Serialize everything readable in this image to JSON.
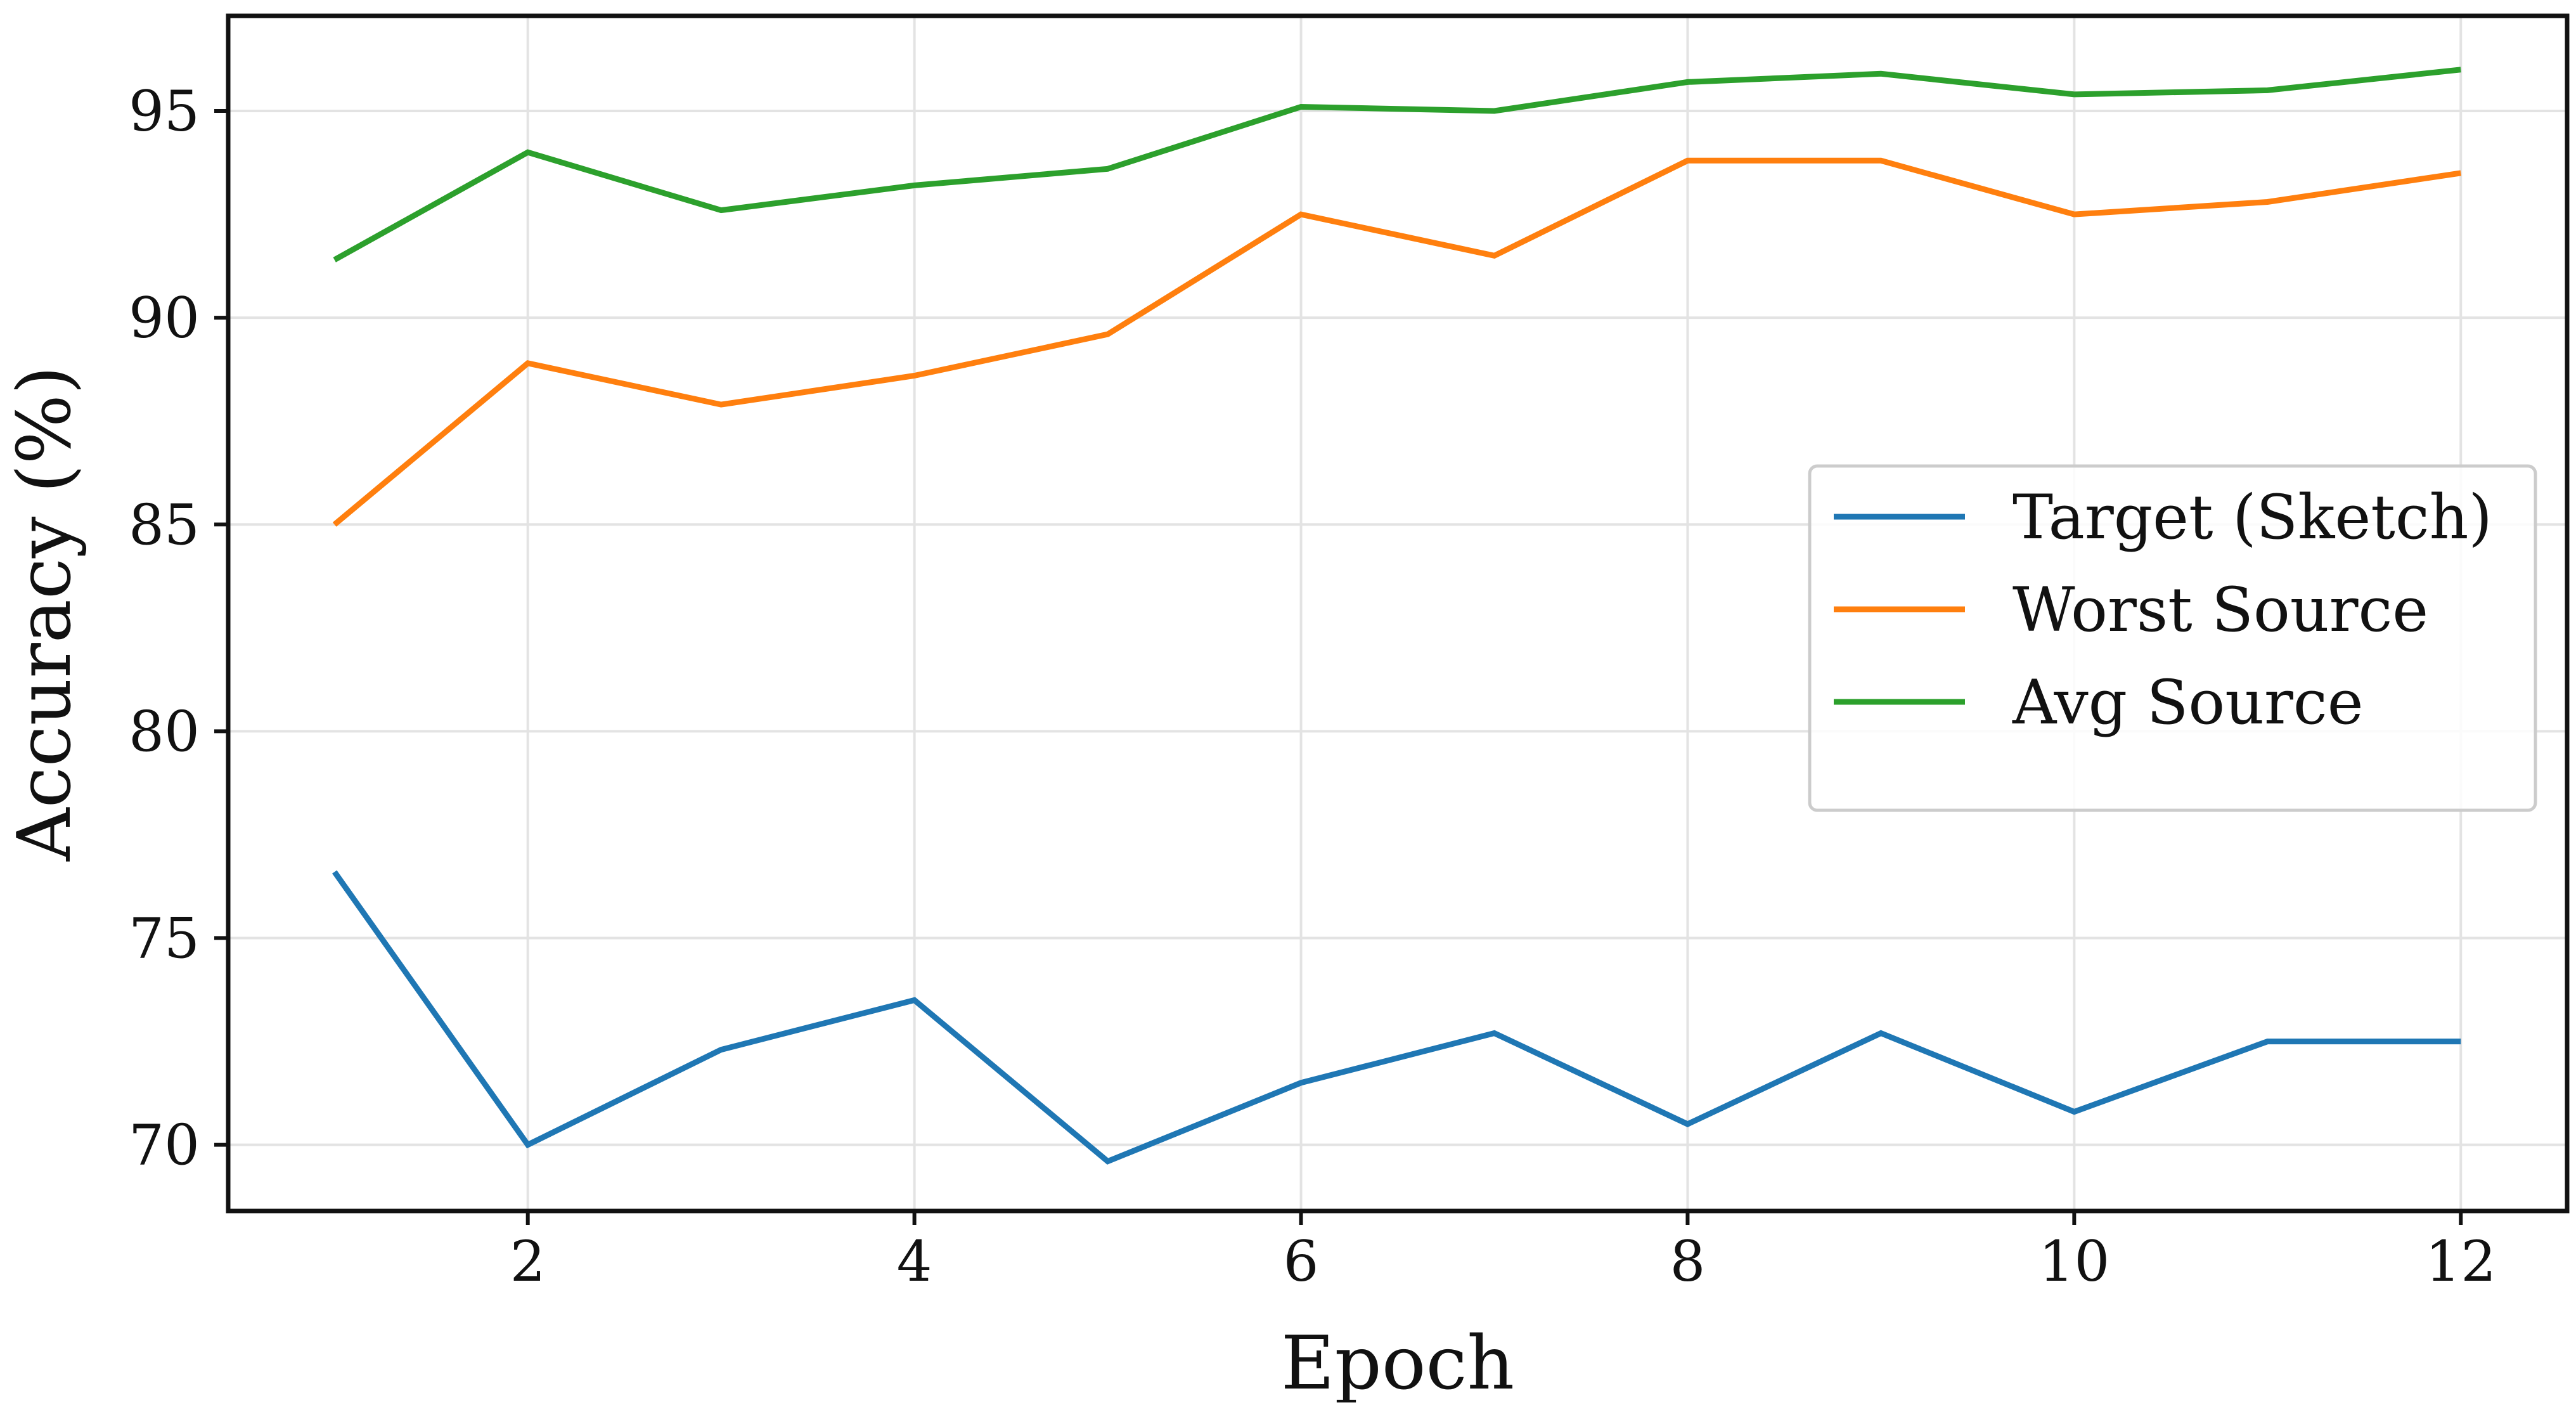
{
  "chart_data": {
    "type": "line",
    "title": "",
    "xlabel": "Epoch",
    "ylabel": "Accuracy (%)",
    "x": [
      1,
      2,
      3,
      4,
      5,
      6,
      7,
      8,
      9,
      10,
      11,
      12
    ],
    "xticks": [
      2,
      4,
      6,
      8,
      10,
      12
    ],
    "yticks": [
      70,
      75,
      80,
      85,
      90,
      95
    ],
    "xlim": [
      0.45,
      12.55
    ],
    "ylim": [
      68.4,
      97.3
    ],
    "grid": true,
    "legend_position": "center-right",
    "series": [
      {
        "name": "Target (Sketch)",
        "color": "#1f77b4",
        "values": [
          76.6,
          70.0,
          72.3,
          73.5,
          69.6,
          71.5,
          72.7,
          70.5,
          72.7,
          70.8,
          72.5,
          72.5
        ]
      },
      {
        "name": "Worst Source",
        "color": "#ff7f0e",
        "values": [
          85.0,
          88.9,
          87.9,
          88.6,
          89.6,
          92.5,
          91.5,
          93.8,
          93.8,
          92.5,
          92.8,
          93.5
        ]
      },
      {
        "name": "Avg Source",
        "color": "#2ca02c",
        "values": [
          91.4,
          94.0,
          92.6,
          93.2,
          93.6,
          95.1,
          95.0,
          95.7,
          95.9,
          95.4,
          95.5,
          96.0
        ]
      }
    ]
  }
}
